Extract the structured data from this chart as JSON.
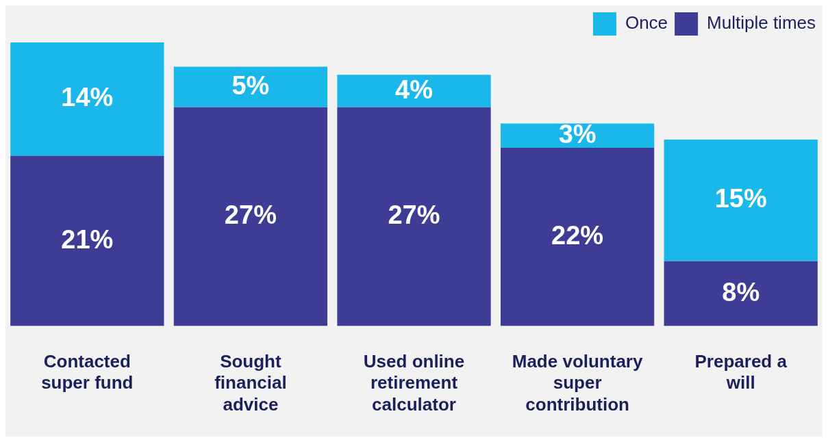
{
  "chart_data": {
    "type": "bar",
    "stacked": true,
    "categories": [
      "Contacted super fund",
      "Sought financial advice",
      "Used online retirement calculator",
      "Made voluntary super contribution",
      "Prepared a will"
    ],
    "series": [
      {
        "name": "Multiple times",
        "color": "#3d3d96",
        "values": [
          21,
          27,
          27,
          22,
          8
        ],
        "value_labels": [
          "21%",
          "27%",
          "27%",
          "22%",
          "8%"
        ]
      },
      {
        "name": "Once",
        "color": "#1ab8ea",
        "values": [
          14,
          5,
          4,
          3,
          15
        ],
        "value_labels": [
          "14%",
          "5%",
          "4%",
          "3%",
          "15%"
        ]
      }
    ],
    "legend": "top right",
    "grid": false,
    "tick_labels": "x"
  }
}
